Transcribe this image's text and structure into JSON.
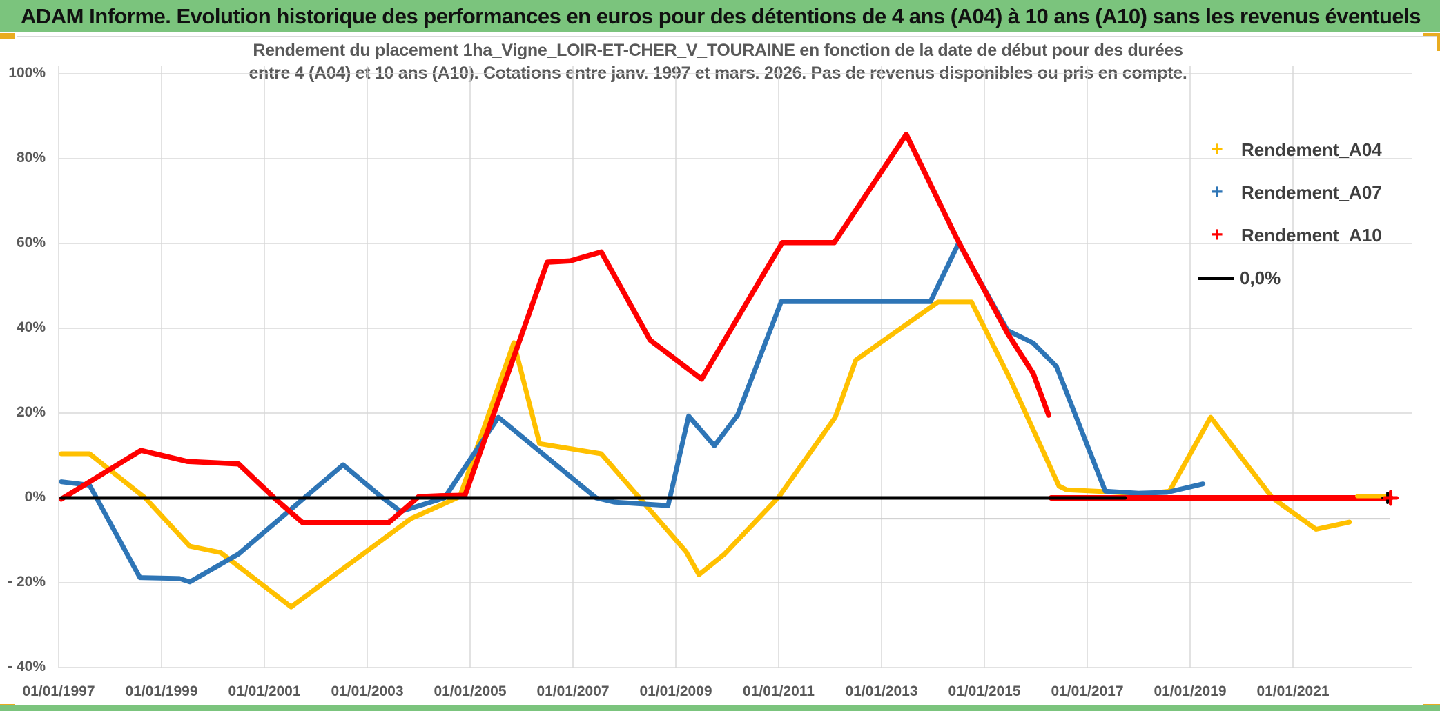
{
  "banner": {
    "title": "ADAM Informe. Evolution historique des performances en euros pour des détentions de 4 ans (A04) à 10 ans (A10) sans les revenus éventuels"
  },
  "subtitle": {
    "line1": "Rendement du placement 1ha_Vigne_LOIR-ET-CHER_V_TOURAINE en fonction de la date de début pour des durées",
    "line2": "entre 4 (A04) et 10 ans (A10). Cotations entre janv. 1997 et mars. 2026. Pas de revenus disponibles ou pris en compte."
  },
  "colors": {
    "banner_green": "#7BC47D",
    "accent_gold": "#E9AC20",
    "grid": "#D8D8D8",
    "artifact": "#CBCBCB",
    "axis_text": "#595959",
    "legend_text": "#3F3F3F",
    "series_a04": "#FFC000",
    "series_a07": "#2E75B6",
    "series_a10": "#FF0000",
    "series_zero": "#000000"
  },
  "chart_data": {
    "type": "line",
    "x_tick_labels": [
      "01/01/1997",
      "01/01/1999",
      "01/01/2001",
      "01/01/2003",
      "01/01/2005",
      "01/01/2007",
      "01/01/2009",
      "01/01/2011",
      "01/01/2013",
      "01/01/2015",
      "01/01/2017",
      "01/01/2019",
      "01/01/2021"
    ],
    "x_tick_years": [
      1997,
      1999,
      2001,
      2003,
      2005,
      2007,
      2009,
      2011,
      2013,
      2015,
      2017,
      2019,
      2021
    ],
    "y_tick_labels": [
      "100%",
      "80%",
      "60%",
      "40%",
      "20%",
      "0%",
      "- 20%",
      "- 40%"
    ],
    "y_tick_values": [
      100,
      80,
      60,
      40,
      20,
      0,
      -20,
      -40
    ],
    "ylim": [
      -40,
      100
    ],
    "xlim_years": [
      1997,
      2023.3
    ],
    "grid": true,
    "legend_position": "top-right",
    "series": [
      {
        "name": "Rendement_A04",
        "color": "#FFC000",
        "points": [
          [
            1997.05,
            10.4
          ],
          [
            1997.6,
            10.4
          ],
          [
            1998.68,
            0
          ],
          [
            1999.55,
            -11.4
          ],
          [
            2000.15,
            -12.9
          ],
          [
            2001.52,
            -25.7
          ],
          [
            2003.85,
            -4.9
          ],
          [
            2004.8,
            0.3
          ],
          [
            2005.85,
            36.6
          ],
          [
            2006.35,
            12.8
          ],
          [
            2007.55,
            10.4
          ],
          [
            2009.2,
            -12.7
          ],
          [
            2009.45,
            -18.1
          ],
          [
            2009.95,
            -13.2
          ],
          [
            2011.0,
            0.2
          ],
          [
            2012.1,
            19
          ],
          [
            2012.5,
            32.5
          ],
          [
            2014.1,
            46.2
          ],
          [
            2014.75,
            46.2
          ],
          [
            2015.5,
            28
          ],
          [
            2016.45,
            2.8
          ],
          [
            2016.6,
            1.9
          ],
          [
            2017.3,
            1.5
          ],
          [
            2018.1,
            0.9
          ],
          [
            2018.6,
            1.6
          ],
          [
            2019.4,
            19
          ],
          [
            2020.6,
            0
          ],
          [
            2021.45,
            -7.4
          ],
          [
            2022.1,
            -5.7
          ]
        ]
      },
      {
        "name": "Rendement_A07",
        "color": "#2E75B6",
        "points": [
          [
            1997.05,
            3.8
          ],
          [
            1997.6,
            3.0
          ],
          [
            1998.58,
            -18.8
          ],
          [
            1999.35,
            -19.0
          ],
          [
            1999.55,
            -19.8
          ],
          [
            2000.5,
            -13.2
          ],
          [
            2002.53,
            7.8
          ],
          [
            2003.3,
            0
          ],
          [
            2003.65,
            -3.2
          ],
          [
            2004.5,
            0
          ],
          [
            2005.55,
            19.0
          ],
          [
            2007.45,
            0
          ],
          [
            2007.8,
            -1.0
          ],
          [
            2008.85,
            -1.8
          ],
          [
            2009.25,
            19.3
          ],
          [
            2009.75,
            12.3
          ],
          [
            2010.2,
            19.5
          ],
          [
            2011.05,
            46.3
          ],
          [
            2013.95,
            46.3
          ],
          [
            2014.5,
            60.1
          ],
          [
            2015.45,
            39.5
          ],
          [
            2015.95,
            36.5
          ],
          [
            2016.4,
            31
          ],
          [
            2017.35,
            1.6
          ],
          [
            2018.0,
            1.1
          ],
          [
            2018.55,
            1.3
          ],
          [
            2019.25,
            3.3
          ]
        ]
      },
      {
        "name": "Rendement_A10",
        "color": "#FF0000",
        "points": [
          [
            1997.05,
            -0.3
          ],
          [
            1998.6,
            11.2
          ],
          [
            1999.5,
            8.6
          ],
          [
            2000.5,
            8.0
          ],
          [
            2001.19,
            0
          ],
          [
            2001.74,
            -5.8
          ],
          [
            2003.42,
            -5.8
          ],
          [
            2004.0,
            0.3
          ],
          [
            2004.43,
            0.5
          ],
          [
            2004.9,
            0.6
          ],
          [
            2006.5,
            55.6
          ],
          [
            2006.95,
            55.9
          ],
          [
            2007.55,
            58.0
          ],
          [
            2008.5,
            37.2
          ],
          [
            2009.5,
            28.0
          ],
          [
            2010.45,
            47.5
          ],
          [
            2011.07,
            60.2
          ],
          [
            2012.08,
            60.2
          ],
          [
            2013.48,
            85.7
          ],
          [
            2014.45,
            61.5
          ],
          [
            2015.45,
            38.8
          ],
          [
            2015.95,
            29.3
          ],
          [
            2016.25,
            19.5
          ]
        ]
      },
      {
        "name": "0,0%",
        "color": "#000000",
        "points": [
          [
            1997.05,
            0
          ],
          [
            2017.74,
            0
          ]
        ]
      }
    ],
    "zero_fill_segments": [
      {
        "series": "Rendement_A10",
        "color": "#FF0000",
        "points": [
          [
            2016.3,
            0
          ],
          [
            2022.9,
            0
          ]
        ],
        "end_marker": true
      },
      {
        "series": "Rendement_A04",
        "color": "#FFC000",
        "points": [
          [
            2022.25,
            0.4
          ],
          [
            2022.85,
            0.4
          ]
        ],
        "end_marker": false
      }
    ],
    "artifact_line": {
      "from_year": 2003.4,
      "to_year": 2022.88,
      "value": -4.9
    },
    "legend": [
      {
        "label": "Rendement_A04",
        "color": "#FFC000",
        "marker": "plus"
      },
      {
        "label": "Rendement_A07",
        "color": "#2E75B6",
        "marker": "plus"
      },
      {
        "label": "Rendement_A10",
        "color": "#FF0000",
        "marker": "plus"
      },
      {
        "label": "0,0%",
        "color": "#000000",
        "marker": "line"
      }
    ]
  }
}
